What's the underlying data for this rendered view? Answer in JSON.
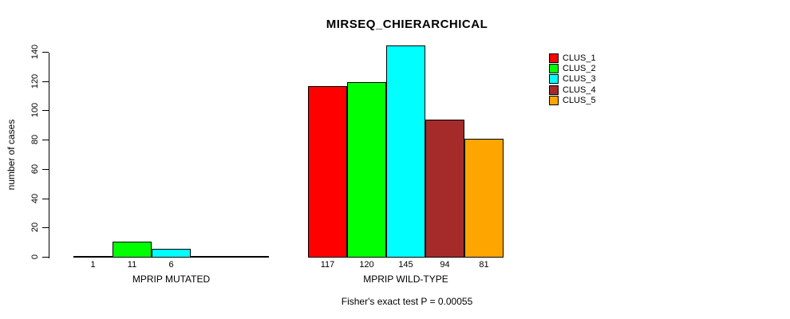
{
  "chart_data": {
    "type": "bar",
    "title": "MIRSEQ_CHIERARCHICAL",
    "ylabel": "number of cases",
    "xlabel": "",
    "ylim": [
      0,
      145
    ],
    "yticks": [
      0,
      20,
      40,
      60,
      80,
      100,
      120,
      140
    ],
    "grid": false,
    "legend_position": "right",
    "categories": [
      "MPRIP MUTATED",
      "MPRIP WILD-TYPE"
    ],
    "series": [
      {
        "name": "CLUS_1",
        "color": "#FF0000",
        "values": [
          1,
          117
        ]
      },
      {
        "name": "CLUS_2",
        "color": "#00FF00",
        "values": [
          11,
          120
        ]
      },
      {
        "name": "CLUS_3",
        "color": "#00FFFF",
        "values": [
          6,
          145
        ]
      },
      {
        "name": "CLUS_4",
        "color": "#A52A2A",
        "values": [
          0,
          94
        ]
      },
      {
        "name": "CLUS_5",
        "color": "#FFA500",
        "values": [
          0,
          81
        ]
      }
    ],
    "bar_value_labels_shown_when": "value > 0",
    "annotation": "Fisher's exact test P = 0.00055",
    "bar_border_color": "#000000",
    "background_color": "#FFFFFF"
  }
}
